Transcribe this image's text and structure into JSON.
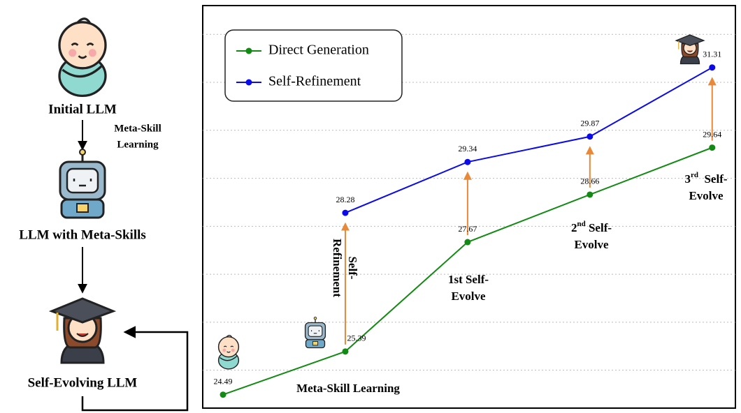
{
  "diagram": {
    "stages": [
      {
        "label": "Initial LLM"
      },
      {
        "label": "LLM with Meta-Skills"
      },
      {
        "label": "Self-Evolving LLM"
      }
    ],
    "edge_labels": [
      "Meta-Skill",
      "Learning"
    ]
  },
  "chart_data": {
    "type": "line",
    "x": [
      0,
      1,
      2,
      3,
      4
    ],
    "xlim": [
      -0.166,
      4.19
    ],
    "ylim": [
      24.21,
      32.6
    ],
    "ygrid": [
      25,
      26,
      27,
      28,
      29,
      30,
      31,
      32
    ],
    "grid": true,
    "legend": "upper left",
    "series": [
      {
        "name": "Direct Generation",
        "color": "#138a13",
        "values": [
          24.49,
          25.39,
          27.67,
          28.66,
          29.64
        ]
      },
      {
        "name": "Self-Refinement",
        "color": "#0b0bea",
        "values": [
          null,
          28.28,
          29.34,
          29.87,
          31.31
        ]
      }
    ],
    "arrow_color": "#e8893a",
    "annotations": [
      {
        "lines": [
          {
            "pre": "Self-"
          },
          {
            "pre": "Refinement"
          }
        ]
      },
      {
        "lines": [
          {
            "pre": "Meta-Skill Learning"
          }
        ]
      },
      {
        "lines": [
          {
            "pre": "1st Self-"
          },
          {
            "pre": "Evolve"
          }
        ]
      },
      {
        "lines": [
          {
            "pre": "2",
            "sup": "nd",
            "post": " Self-"
          },
          {
            "pre": "Evolve"
          }
        ]
      },
      {
        "lines": [
          {
            "pre": "3",
            "sup": "rd",
            "post": "  Self-"
          },
          {
            "pre": "Evolve"
          }
        ]
      }
    ]
  }
}
